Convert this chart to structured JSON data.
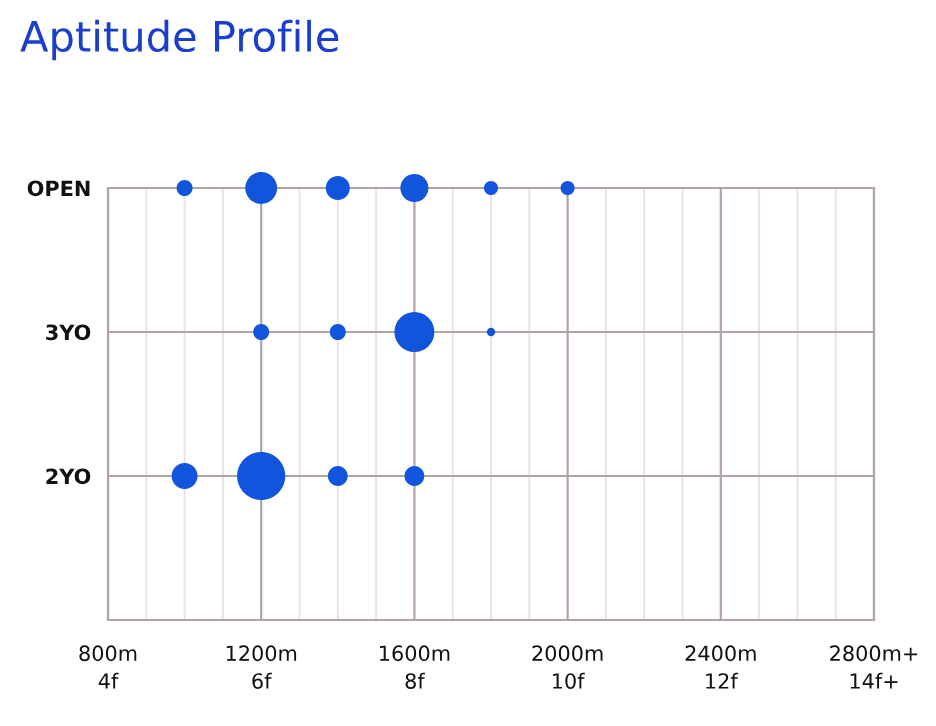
{
  "chart_data": {
    "type": "bubble",
    "title": "Aptitude Profile",
    "orientation": "horizontal",
    "categories": [
      "OPEN",
      "3YO",
      "2YO",
      null
    ],
    "series": [
      {
        "color": "#1155dd",
        "values": [
          1000,
          null,
          1000,
          null
        ],
        "sizes": [
          0.11,
          null,
          0.29,
          null
        ]
      },
      {
        "color": "#1155dd",
        "values": [
          1200,
          1200,
          1200,
          null
        ],
        "sizes": [
          0.44,
          0.11,
          1,
          null
        ]
      },
      {
        "color": "#1155dd",
        "values": [
          1400,
          1400,
          1400,
          null
        ],
        "sizes": [
          0.25,
          0.11,
          0.17,
          null
        ]
      },
      {
        "color": "#1155dd",
        "values": [
          1600,
          1600,
          1600,
          null
        ],
        "sizes": [
          0.34,
          0.69,
          0.17,
          null
        ]
      },
      {
        "color": "#1155dd",
        "values": [
          1800,
          1800,
          null,
          null
        ],
        "sizes": [
          0.085,
          0.03,
          null,
          null
        ]
      },
      {
        "color": "#1155dd",
        "values": [
          2000,
          null,
          null,
          null
        ],
        "sizes": [
          0.085,
          null,
          null,
          null
        ]
      }
    ],
    "xlim": [
      800,
      2800
    ],
    "xticks": [
      {
        "value": 800,
        "label": "800m"
      },
      {
        "value": 1200,
        "label": "1200m"
      },
      {
        "value": 1600,
        "label": "1600m"
      },
      {
        "value": 2000,
        "label": "2000m"
      },
      {
        "value": 2400,
        "label": "2400m"
      },
      {
        "value": 2800,
        "label": "2800m+"
      }
    ],
    "x2lim": [
      4,
      14
    ],
    "x2ticks": [
      {
        "value": 4,
        "label": "4f"
      },
      {
        "value": 6,
        "label": "6f"
      },
      {
        "value": 8,
        "label": "8f"
      },
      {
        "value": 10,
        "label": "10f"
      },
      {
        "value": 12,
        "label": "12f"
      },
      {
        "value": 14,
        "label": "14f+"
      }
    ],
    "grid": true
  }
}
